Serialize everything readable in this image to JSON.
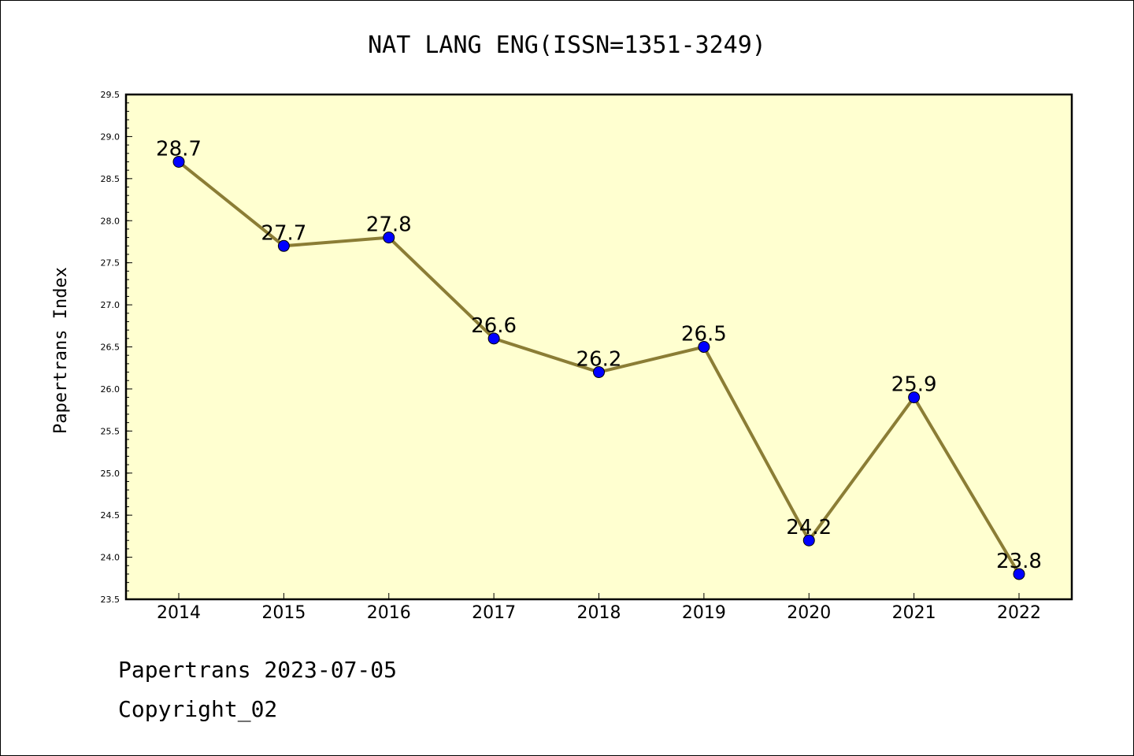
{
  "chart_data": {
    "type": "line",
    "title": "NAT LANG ENG(ISSN=1351-3249)",
    "ylabel": "Papertrans Index",
    "xlabel": "",
    "categories": [
      "2014",
      "2015",
      "2016",
      "2017",
      "2018",
      "2019",
      "2020",
      "2021",
      "2022"
    ],
    "values": [
      28.7,
      27.7,
      27.8,
      26.6,
      26.2,
      26.5,
      24.2,
      25.9,
      23.8
    ],
    "data_labels": [
      "28.7",
      "27.7",
      "27.8",
      "26.6",
      "26.2",
      "26.5",
      "24.2",
      "25.9",
      "23.8"
    ],
    "ylim": [
      23.5,
      29.5
    ],
    "yticks": [
      "23.5",
      "24.0",
      "24.5",
      "25.0",
      "25.5",
      "26.0",
      "26.5",
      "27.0",
      "27.5",
      "28.0",
      "28.5",
      "29.0",
      "29.5"
    ],
    "grid": false,
    "colors": {
      "plot_background": "#ffffd0",
      "line": "#8b7d35",
      "marker": "#0000ff"
    }
  },
  "footer": {
    "line1": "Papertrans 2023-07-05",
    "line2": "Copyright_02"
  }
}
